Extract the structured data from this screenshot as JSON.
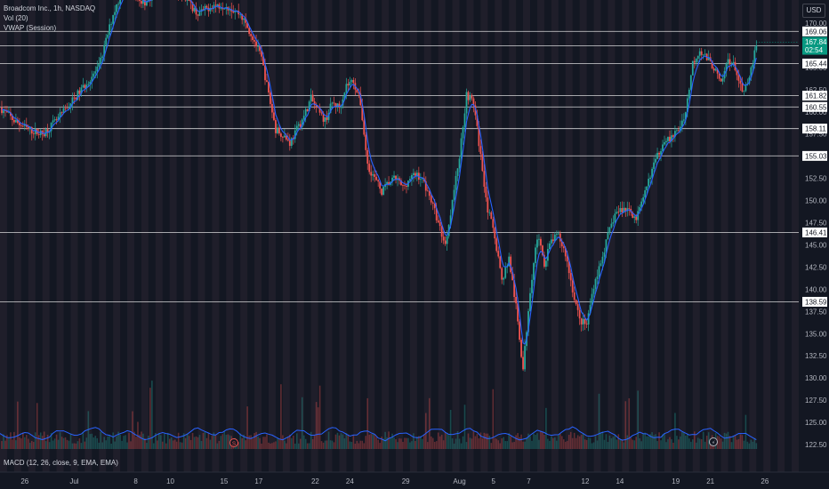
{
  "header": {
    "symbol_line": "Broadcom Inc., 1h, NASDAQ",
    "volume_label": "Vol (20)",
    "vwap_label": "VWAP (Session)"
  },
  "macd_label": "MACD (12, 26, close, 9, EMA, EMA)",
  "currency": "USD",
  "last_price": {
    "value": "167.84",
    "countdown": "02:54"
  },
  "colors": {
    "background": "#131722",
    "up": "#26a69a",
    "down": "#ef5350",
    "vwap": "#2962ff",
    "level_line": "#ffffff",
    "last_price_bg": "#089981",
    "session_band_a": "#1e222d",
    "session_band_b": "#2a2431"
  },
  "chart_data": {
    "type": "candlestick",
    "y_range": [
      121.5,
      172.2
    ],
    "price_ticks": [
      "170.00",
      "167.50",
      "165.00",
      "162.50",
      "160.00",
      "157.50",
      "155.00",
      "152.50",
      "150.00",
      "147.50",
      "145.00",
      "142.50",
      "140.00",
      "137.50",
      "135.00",
      "132.50",
      "130.00",
      "127.50",
      "125.00",
      "122.50"
    ],
    "x_ticks": [
      {
        "label": "26",
        "t": 3.5
      },
      {
        "label": "Jul",
        "t": 10.5
      },
      {
        "label": "8",
        "t": 19.2
      },
      {
        "label": "10",
        "t": 24.1
      },
      {
        "label": "15",
        "t": 31.7
      },
      {
        "label": "17",
        "t": 36.6
      },
      {
        "label": "22",
        "t": 44.6
      },
      {
        "label": "24",
        "t": 49.5
      },
      {
        "label": "29",
        "t": 57.4
      },
      {
        "label": "Aug",
        "t": 65.0
      },
      {
        "label": "5",
        "t": 69.8
      },
      {
        "label": "7",
        "t": 74.8
      },
      {
        "label": "12",
        "t": 82.8
      },
      {
        "label": "14",
        "t": 87.7
      },
      {
        "label": "19",
        "t": 95.6
      },
      {
        "label": "21",
        "t": 100.5
      },
      {
        "label": "26",
        "t": 108.2
      }
    ],
    "levels": [
      {
        "label": "169.06",
        "value": 169.06
      },
      {
        "label": "167.43",
        "value": 167.43
      },
      {
        "label": "165.44",
        "value": 165.44
      },
      {
        "label": "161.82",
        "value": 161.82
      },
      {
        "label": "160.55",
        "value": 160.55
      },
      {
        "label": "158.11",
        "value": 158.11
      },
      {
        "label": "155.03",
        "value": 155.03
      },
      {
        "label": "146.41",
        "value": 146.41
      },
      {
        "label": "138.59",
        "value": 138.59
      }
    ],
    "price_path": [
      [
        0,
        160.5
      ],
      [
        2,
        159.0
      ],
      [
        4,
        158.0
      ],
      [
        6,
        157.5
      ],
      [
        8,
        159.0
      ],
      [
        10,
        161.0
      ],
      [
        12,
        163.0
      ],
      [
        14,
        165.0
      ],
      [
        16,
        171.0
      ],
      [
        18,
        175.0
      ],
      [
        20,
        172.0
      ],
      [
        22,
        173.5
      ],
      [
        24,
        174.0
      ],
      [
        26,
        173.0
      ],
      [
        28,
        171.0
      ],
      [
        30,
        172.0
      ],
      [
        32,
        172.0
      ],
      [
        34,
        171.0
      ],
      [
        36,
        168.0
      ],
      [
        37,
        166.0
      ],
      [
        38,
        162.0
      ],
      [
        39,
        158.0
      ],
      [
        40,
        157.5
      ],
      [
        41,
        156.5
      ],
      [
        42,
        158.0
      ],
      [
        43,
        159.5
      ],
      [
        44,
        161.5
      ],
      [
        45,
        160.0
      ],
      [
        46,
        159.0
      ],
      [
        47,
        161.0
      ],
      [
        48,
        160.5
      ],
      [
        49,
        163.0
      ],
      [
        50,
        163.5
      ],
      [
        51,
        161.0
      ],
      [
        52,
        154.0
      ],
      [
        53,
        152.5
      ],
      [
        54,
        151.0
      ],
      [
        55,
        152.0
      ],
      [
        56,
        152.5
      ],
      [
        57,
        151.5
      ],
      [
        58,
        152.5
      ],
      [
        59,
        153.0
      ],
      [
        60,
        152.0
      ],
      [
        61,
        150.0
      ],
      [
        62,
        147.5
      ],
      [
        63,
        145.0
      ],
      [
        64,
        150.0
      ],
      [
        65,
        155.0
      ],
      [
        66,
        162.0
      ],
      [
        67,
        161.0
      ],
      [
        68,
        155.0
      ],
      [
        69,
        149.0
      ],
      [
        70,
        146.0
      ],
      [
        71,
        141.0
      ],
      [
        72,
        143.5
      ],
      [
        73,
        138.0
      ],
      [
        74,
        131.0
      ],
      [
        75,
        140.0
      ],
      [
        76,
        146.0
      ],
      [
        77,
        143.0
      ],
      [
        78,
        145.5
      ],
      [
        79,
        146.0
      ],
      [
        80,
        144.0
      ],
      [
        81,
        140.0
      ],
      [
        82,
        136.5
      ],
      [
        83,
        136.0
      ],
      [
        84,
        140.5
      ],
      [
        85,
        143.0
      ],
      [
        86,
        146.0
      ],
      [
        87,
        148.5
      ],
      [
        88,
        149.0
      ],
      [
        89,
        149.0
      ],
      [
        90,
        148.0
      ],
      [
        91,
        150.0
      ],
      [
        92,
        153.0
      ],
      [
        93,
        155.0
      ],
      [
        94,
        157.0
      ],
      [
        95,
        157.0
      ],
      [
        96,
        158.0
      ],
      [
        97,
        160.0
      ],
      [
        98,
        165.5
      ],
      [
        99,
        167.0
      ],
      [
        100,
        166.0
      ],
      [
        101,
        165.0
      ],
      [
        102,
        163.0
      ],
      [
        103,
        166.0
      ],
      [
        104,
        165.0
      ],
      [
        105,
        162.0
      ],
      [
        106,
        163.5
      ],
      [
        107,
        167.8
      ]
    ]
  }
}
